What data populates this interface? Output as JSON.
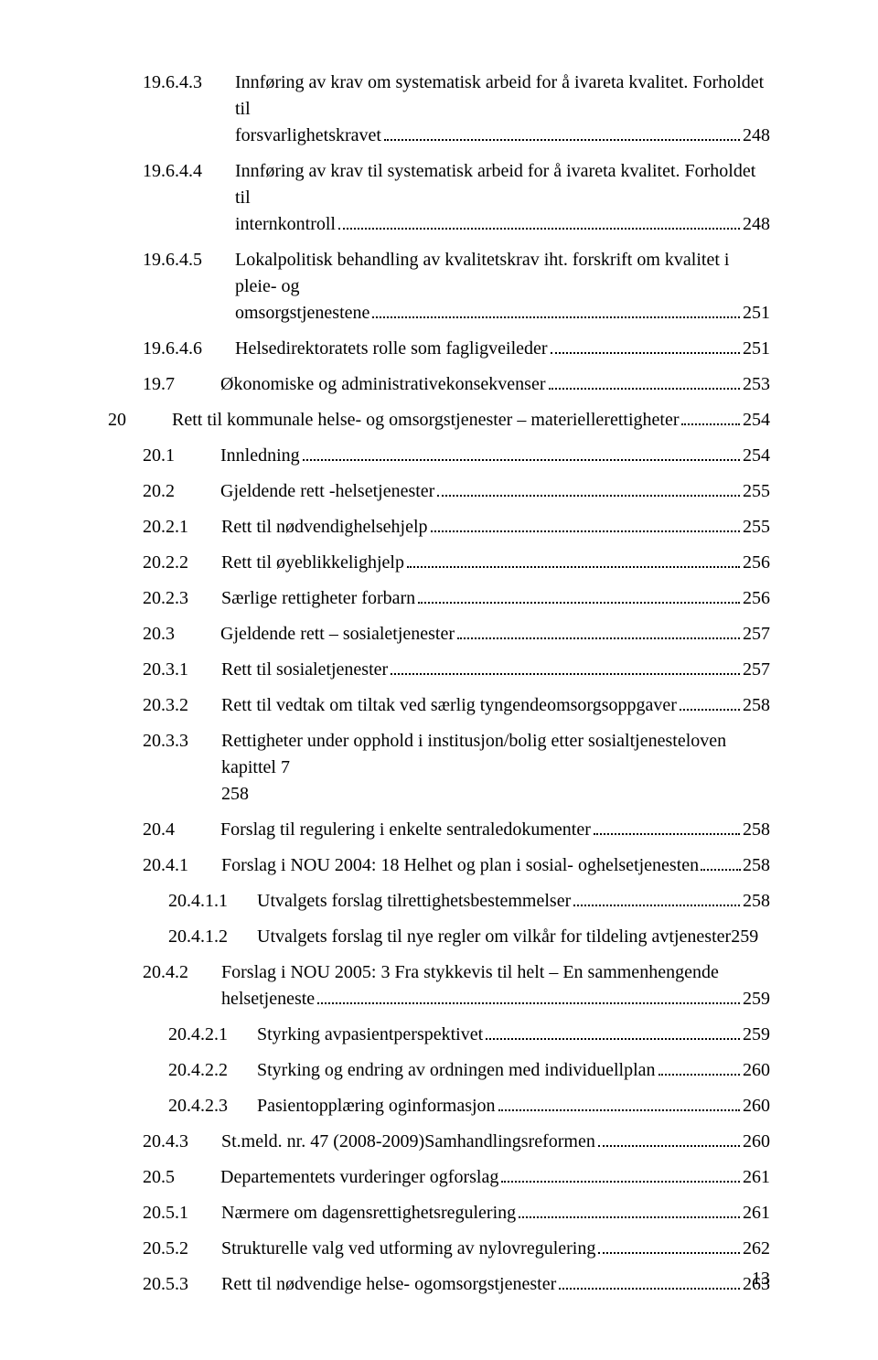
{
  "pageNumber": "13",
  "entries": [
    {
      "indent": 2,
      "num": "19.6.4.3",
      "title": "Innføring av krav om systematisk arbeid for å ivareta kvalitet. Forholdet til forsvarlighetskravet",
      "page": "248",
      "wrap": true
    },
    {
      "indent": 2,
      "num": "19.6.4.4",
      "title": "Innføring av krav til systematisk arbeid for å ivareta kvalitet. Forholdet til internkontroll",
      "page": "248",
      "wrap": true
    },
    {
      "indent": 2,
      "num": "19.6.4.5",
      "title": "Lokalpolitisk behandling av kvalitetskrav iht. forskrift om kvalitet i pleie- og omsorgstjenestene",
      "page": "251",
      "wrap": true
    },
    {
      "indent": 2,
      "num": "19.6.4.6",
      "title": "Helsedirektoratets rolle som faglig veileder",
      "page": "251"
    },
    {
      "indent": 1,
      "num": "19.7",
      "title": "Økonomiske og administrative konsekvenser",
      "page": "253"
    },
    {
      "indent": 0,
      "num": "20",
      "title": "Rett til kommunale helse- og omsorgstjenester – materielle rettigheter",
      "page": "254"
    },
    {
      "indent": 1,
      "num": "20.1",
      "title": "Innledning",
      "page": "254"
    },
    {
      "indent": 1,
      "num": "20.2",
      "title": "Gjeldende rett - helsetjenester",
      "page": "255"
    },
    {
      "indent": 2,
      "num": "20.2.1",
      "title": "Rett til nødvendig helsehjelp",
      "page": "255"
    },
    {
      "indent": 2,
      "num": "20.2.2",
      "title": "Rett til øyeblikkelig hjelp",
      "page": "256"
    },
    {
      "indent": 2,
      "num": "20.2.3",
      "title": "Særlige rettigheter for barn",
      "page": "256"
    },
    {
      "indent": 1,
      "num": "20.3",
      "title": "Gjeldende rett – sosiale tjenester",
      "page": "257"
    },
    {
      "indent": 2,
      "num": "20.3.1",
      "title": "Rett til sosiale tjenester",
      "page": "257"
    },
    {
      "indent": 2,
      "num": "20.3.2",
      "title": "Rett til vedtak om tiltak ved særlig tyngende omsorgsoppgaver",
      "page": "258"
    },
    {
      "indent": 2,
      "num": "20.3.3",
      "title": "Rettigheter under opphold i institusjon/bolig etter sosialtjenesteloven kapittel 7 258",
      "page": "",
      "wrap": true,
      "noleader": true
    },
    {
      "indent": 1,
      "num": "20.4",
      "title": "Forslag til regulering i enkelte sentrale dokumenter",
      "page": "258"
    },
    {
      "indent": 2,
      "num": "20.4.1",
      "title": "Forslag i NOU 2004: 18 Helhet og plan i sosial- og helsetjenesten",
      "page": "258",
      "tightleader": true
    },
    {
      "indent": 3,
      "num": "20.4.1.1",
      "title": "Utvalgets forslag til rettighetsbestemmelser",
      "page": "258"
    },
    {
      "indent": 3,
      "num": "20.4.1.2",
      "title": "Utvalgets forslag til nye regler om vilkår for tildeling av tjenester",
      "page": "259",
      "noleader": true
    },
    {
      "indent": 2,
      "num": "20.4.2",
      "title": "Forslag i NOU 2005: 3 Fra stykkevis til helt – En sammenhengende helsetjeneste",
      "page": "259",
      "wrap": true
    },
    {
      "indent": 3,
      "num": "20.4.2.1",
      "title": "Styrking av pasientperspektivet",
      "page": "259"
    },
    {
      "indent": 3,
      "num": "20.4.2.2",
      "title": "Styrking og endring av ordningen med individuell plan",
      "page": "260"
    },
    {
      "indent": 3,
      "num": "20.4.2.3",
      "title": "Pasientopplæring og informasjon",
      "page": "260"
    },
    {
      "indent": 2,
      "num": "20.4.3",
      "title": "St.meld. nr. 47 (2008-2009) Samhandlingsreformen",
      "page": "260"
    },
    {
      "indent": 1,
      "num": "20.5",
      "title": "Departementets vurderinger og forslag",
      "page": "261"
    },
    {
      "indent": 2,
      "num": "20.5.1",
      "title": "Nærmere om dagens rettighetsregulering",
      "page": "261"
    },
    {
      "indent": 2,
      "num": "20.5.2",
      "title": "Strukturelle valg ved utforming av ny lovregulering",
      "page": "262"
    },
    {
      "indent": 2,
      "num": "20.5.3",
      "title": "Rett til nødvendige helse- og omsorgstjenester",
      "page": "263"
    }
  ]
}
